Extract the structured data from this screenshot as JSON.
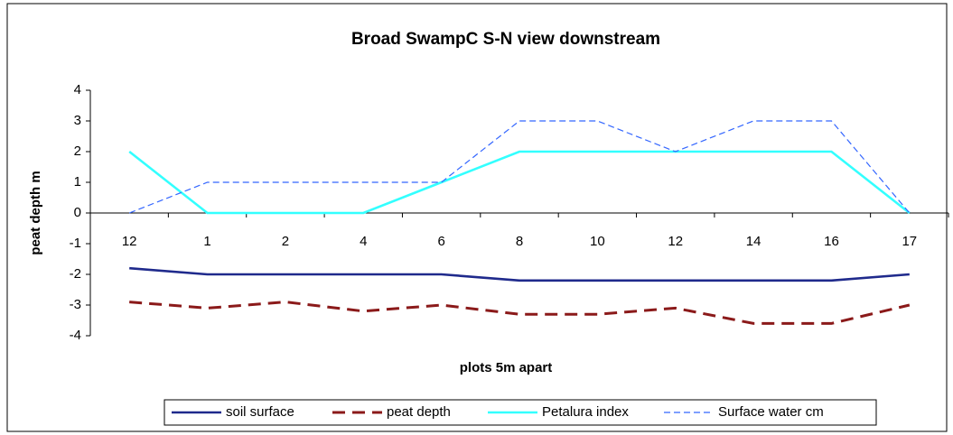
{
  "chart_data": {
    "type": "line",
    "title": "Broad SwampC S-N view downstream",
    "x_label": "plots 5m apart",
    "y_label": "peat depth m",
    "categories": [
      "12",
      "1",
      "2",
      "4",
      "6",
      "8",
      "10",
      "12",
      "14",
      "16",
      "17"
    ],
    "series": [
      {
        "name": "soil surface",
        "color": "#1f2a8c",
        "line_style": "solid",
        "values": [
          -1.8,
          -2,
          -2,
          -2,
          -2,
          -2.2,
          -2.2,
          -2.2,
          -2.2,
          -2.2,
          -2
        ]
      },
      {
        "name": "peat depth",
        "color": "#8b1a1a",
        "line_style": "dashed",
        "values": [
          -2.9,
          -3.1,
          -2.9,
          -3.2,
          -3,
          -3.3,
          -3.3,
          -3.1,
          -3.6,
          -3.6,
          -3
        ]
      },
      {
        "name": "Petalura index",
        "color": "#33ffff",
        "line_style": "solid",
        "values": [
          2,
          0,
          0,
          0,
          1,
          2,
          2,
          2,
          2,
          2,
          0
        ]
      },
      {
        "name": "Surface water cm",
        "color": "#3366ff",
        "line_style": "dashed",
        "values": [
          0,
          1,
          1,
          1,
          1,
          3,
          3,
          2,
          3,
          3,
          0
        ]
      }
    ],
    "ylim": [
      -4,
      4
    ],
    "yticks": [
      -4,
      -3,
      -2,
      -1,
      0,
      1,
      2,
      3,
      4
    ],
    "grid": false,
    "legend": "bottom"
  }
}
